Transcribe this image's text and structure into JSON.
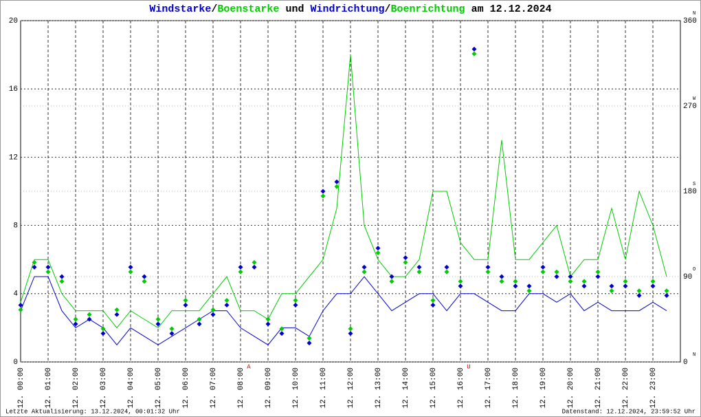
{
  "chart_data": {
    "type": "wind",
    "title_parts": [
      {
        "text": "Windstarke",
        "color": "#0000cc"
      },
      {
        "text": "/",
        "color": "#000000"
      },
      {
        "text": "Boenstarke",
        "color": "#00cc00"
      },
      {
        "text": "und",
        "color": "#000000"
      },
      {
        "text": "Windrichtung",
        "color": "#0000cc"
      },
      {
        "text": "/",
        "color": "#000000"
      },
      {
        "text": "Boenrichtung",
        "color": "#00cc00"
      },
      {
        "text": "am 12.12.2024",
        "color": "#000000"
      }
    ],
    "footer_left": "Letzte Aktualisierung: 13.12.2024, 00:01:32 Uhr",
    "footer_right": "Datenstand: 12.12.2024, 23:59:52 Uhr",
    "xlim": [
      0,
      24
    ],
    "xticks": [
      {
        "value": 0,
        "label": "12. 00:00"
      },
      {
        "value": 1,
        "label": "12. 01:00"
      },
      {
        "value": 2,
        "label": "12. 02:00"
      },
      {
        "value": 3,
        "label": "12. 03:00"
      },
      {
        "value": 4,
        "label": "12. 04:00"
      },
      {
        "value": 5,
        "label": "12. 05:00"
      },
      {
        "value": 6,
        "label": "12. 06:00"
      },
      {
        "value": 7,
        "label": "12. 07:00"
      },
      {
        "value": 8,
        "label": "12. 08:00"
      },
      {
        "value": 9,
        "label": "12. 09:00"
      },
      {
        "value": 10,
        "label": "12. 10:00"
      },
      {
        "value": 11,
        "label": "12. 11:00"
      },
      {
        "value": 12,
        "label": "12. 12:00"
      },
      {
        "value": 13,
        "label": "12. 13:00"
      },
      {
        "value": 14,
        "label": "12. 14:00"
      },
      {
        "value": 15,
        "label": "12. 15:00"
      },
      {
        "value": 16,
        "label": "12. 16:00"
      },
      {
        "value": 17,
        "label": "12. 17:00"
      },
      {
        "value": 18,
        "label": "12. 18:00"
      },
      {
        "value": 19,
        "label": "12. 19:00"
      },
      {
        "value": 20,
        "label": "12. 20:00"
      },
      {
        "value": 21,
        "label": "12. 21:00"
      },
      {
        "value": 22,
        "label": "12. 22:00"
      },
      {
        "value": 23,
        "label": "12. 23:00"
      }
    ],
    "ylim": [
      0,
      20
    ],
    "yticks": [
      0,
      4,
      8,
      12,
      16,
      20
    ],
    "y2lim": [
      0,
      360
    ],
    "y2ticks": [
      0,
      90,
      180,
      270,
      360
    ],
    "y2tick_directions": [
      "N",
      "O",
      "S",
      "W",
      "N"
    ],
    "grid": true,
    "annotations": [
      {
        "text": "A",
        "x": 8.3,
        "color": "#cc0000"
      },
      {
        "text": "U",
        "x": 16.3,
        "color": "#cc0000"
      }
    ],
    "x": [
      0,
      0.5,
      1,
      1.5,
      2,
      2.5,
      3,
      3.5,
      4,
      4.5,
      5,
      5.5,
      6,
      6.5,
      7,
      7.5,
      8,
      8.5,
      9,
      9.5,
      10,
      10.5,
      11,
      11.5,
      12,
      12.5,
      13,
      13.5,
      14,
      14.5,
      15,
      15.5,
      16,
      16.5,
      17,
      17.5,
      18,
      18.5,
      19,
      19.5,
      20,
      20.5,
      21,
      21.5,
      22,
      22.5,
      23,
      23.5
    ],
    "series": [
      {
        "name": "Boenstarke",
        "color": "#00cc00",
        "kind": "line",
        "values": [
          3.5,
          6,
          6,
          4,
          3,
          3,
          3,
          2,
          3,
          2.5,
          2,
          3,
          3,
          3,
          4,
          5,
          3,
          3,
          2.5,
          4,
          4,
          5,
          6,
          9,
          18,
          8,
          6,
          5,
          5,
          6,
          10,
          10,
          7,
          6,
          6,
          13,
          6,
          6,
          7,
          8,
          5,
          6,
          6,
          9,
          6,
          10,
          8,
          5
        ]
      },
      {
        "name": "Windstarke",
        "color": "#0000cc",
        "kind": "line",
        "values": [
          3,
          5,
          5,
          3,
          2,
          2.5,
          2,
          1,
          2,
          1.5,
          1,
          1.5,
          2,
          2.5,
          3,
          3,
          2,
          1.5,
          1,
          2,
          2,
          1.5,
          3,
          4,
          4,
          5,
          4,
          3,
          3.5,
          4,
          4,
          3,
          4,
          4,
          3.5,
          3,
          3,
          4,
          4,
          3.5,
          4,
          3,
          3.5,
          3,
          3,
          3,
          3.5,
          3
        ]
      },
      {
        "name": "Boenrichtung",
        "color": "#00cc00",
        "kind": "dir",
        "axis": "y2",
        "values": [
          55,
          105,
          95,
          85,
          45,
          50,
          35,
          55,
          95,
          85,
          45,
          35,
          65,
          45,
          55,
          65,
          95,
          105,
          45,
          35,
          65,
          25,
          175,
          185,
          35,
          95,
          115,
          85,
          105,
          95,
          65,
          95,
          85,
          325,
          95,
          85,
          85,
          75,
          95,
          95,
          85,
          85,
          95,
          75,
          85,
          75,
          85,
          75
        ]
      },
      {
        "name": "Windrichtung",
        "color": "#0000cc",
        "kind": "dir",
        "axis": "y2",
        "values": [
          60,
          100,
          100,
          90,
          40,
          45,
          30,
          50,
          100,
          90,
          40,
          30,
          60,
          40,
          50,
          60,
          100,
          100,
          40,
          30,
          60,
          20,
          180,
          190,
          30,
          100,
          120,
          90,
          110,
          100,
          60,
          100,
          80,
          330,
          100,
          90,
          80,
          80,
          100,
          90,
          90,
          80,
          90,
          80,
          80,
          70,
          80,
          70
        ]
      }
    ]
  }
}
